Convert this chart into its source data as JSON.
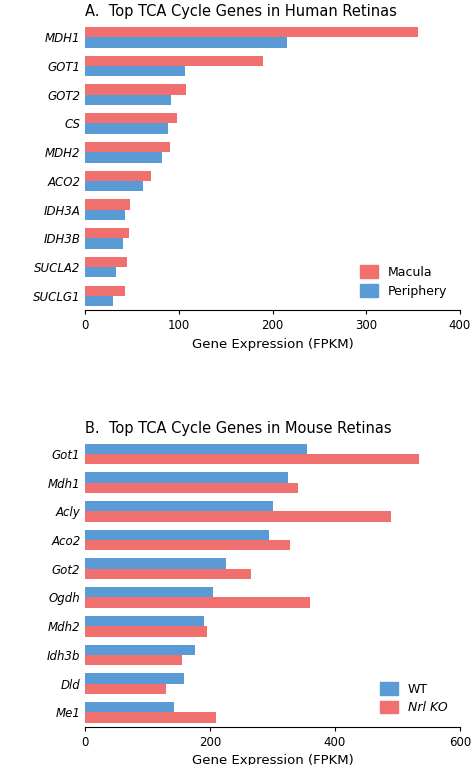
{
  "panel_A": {
    "title": "A.  Top TCA Cycle Genes in Human Retinas",
    "genes": [
      "MDH1",
      "GOT1",
      "GOT2",
      "CS",
      "MDH2",
      "ACO2",
      "IDH3A",
      "IDH3B",
      "SUCLA2",
      "SUCLG1"
    ],
    "top_vals": [
      355,
      190,
      108,
      98,
      90,
      70,
      48,
      47,
      44,
      42
    ],
    "bot_vals": [
      215,
      107,
      92,
      88,
      82,
      62,
      42,
      40,
      33,
      30
    ],
    "color_top": "#F07070",
    "color_bot": "#5B9BD5",
    "xlabel": "Gene Expression (FPKM)",
    "xlim": [
      0,
      400
    ],
    "xticks": [
      0,
      100,
      200,
      300,
      400
    ],
    "legend_labels": [
      "Macula",
      "Periphery"
    ],
    "legend_colors": [
      "#F07070",
      "#5B9BD5"
    ]
  },
  "panel_B": {
    "title": "B.  Top TCA Cycle Genes in Mouse Retinas",
    "genes": [
      "Got1",
      "Mdh1",
      "Acly",
      "Aco2",
      "Got2",
      "Ogdh",
      "Mdh2",
      "Idh3b",
      "Dld",
      "Me1"
    ],
    "top_vals": [
      355,
      325,
      300,
      295,
      225,
      205,
      190,
      175,
      158,
      142
    ],
    "bot_vals": [
      535,
      340,
      490,
      328,
      265,
      360,
      195,
      155,
      130,
      210
    ],
    "color_top": "#5B9BD5",
    "color_bot": "#F07070",
    "xlabel": "Gene Expression (FPKM)",
    "xlim": [
      0,
      600
    ],
    "xticks": [
      0,
      200,
      400,
      600
    ],
    "legend_labels": [
      "WT",
      "Nrl KO"
    ],
    "legend_colors": [
      "#5B9BD5",
      "#F07070"
    ]
  }
}
